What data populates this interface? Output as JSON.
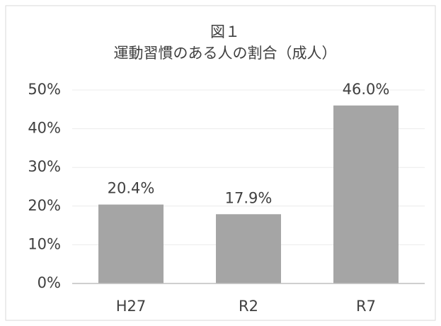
{
  "chart_data": {
    "type": "bar",
    "title": "図１",
    "subtitle": "運動習慣のある人の割合（成人）",
    "categories": [
      "H27",
      "R2",
      "R7"
    ],
    "values": [
      20.4,
      17.9,
      46.0
    ],
    "value_labels": [
      "20.4%",
      "17.9%",
      "46.0%"
    ],
    "color": "#a5a5a5",
    "ylim": [
      0,
      50
    ],
    "yticks": [
      {
        "value": 0,
        "label": "0%"
      },
      {
        "value": 10,
        "label": "10%"
      },
      {
        "value": 20,
        "label": "20%"
      },
      {
        "value": 30,
        "label": "30%"
      },
      {
        "value": 40,
        "label": "40%"
      },
      {
        "value": 50,
        "label": "50%"
      }
    ],
    "grid": true
  }
}
